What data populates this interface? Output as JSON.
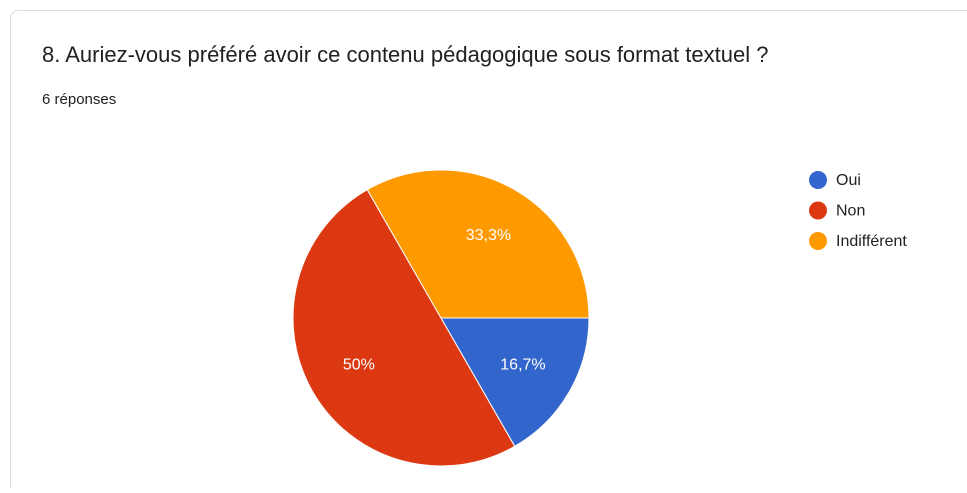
{
  "chart_data": {
    "type": "pie",
    "title": "8. Auriez-vous préféré avoir ce contenu pédagogique sous format textuel ?",
    "subtitle": "6 réponses",
    "categories": [
      "Oui",
      "Non",
      "Indifférent"
    ],
    "values": [
      16.7,
      50,
      33.3
    ],
    "value_labels": [
      "16,7%",
      "50%",
      "33,3%"
    ],
    "colors": [
      "#3366cc",
      "#dc3912",
      "#ff9900"
    ],
    "legend": "right"
  }
}
